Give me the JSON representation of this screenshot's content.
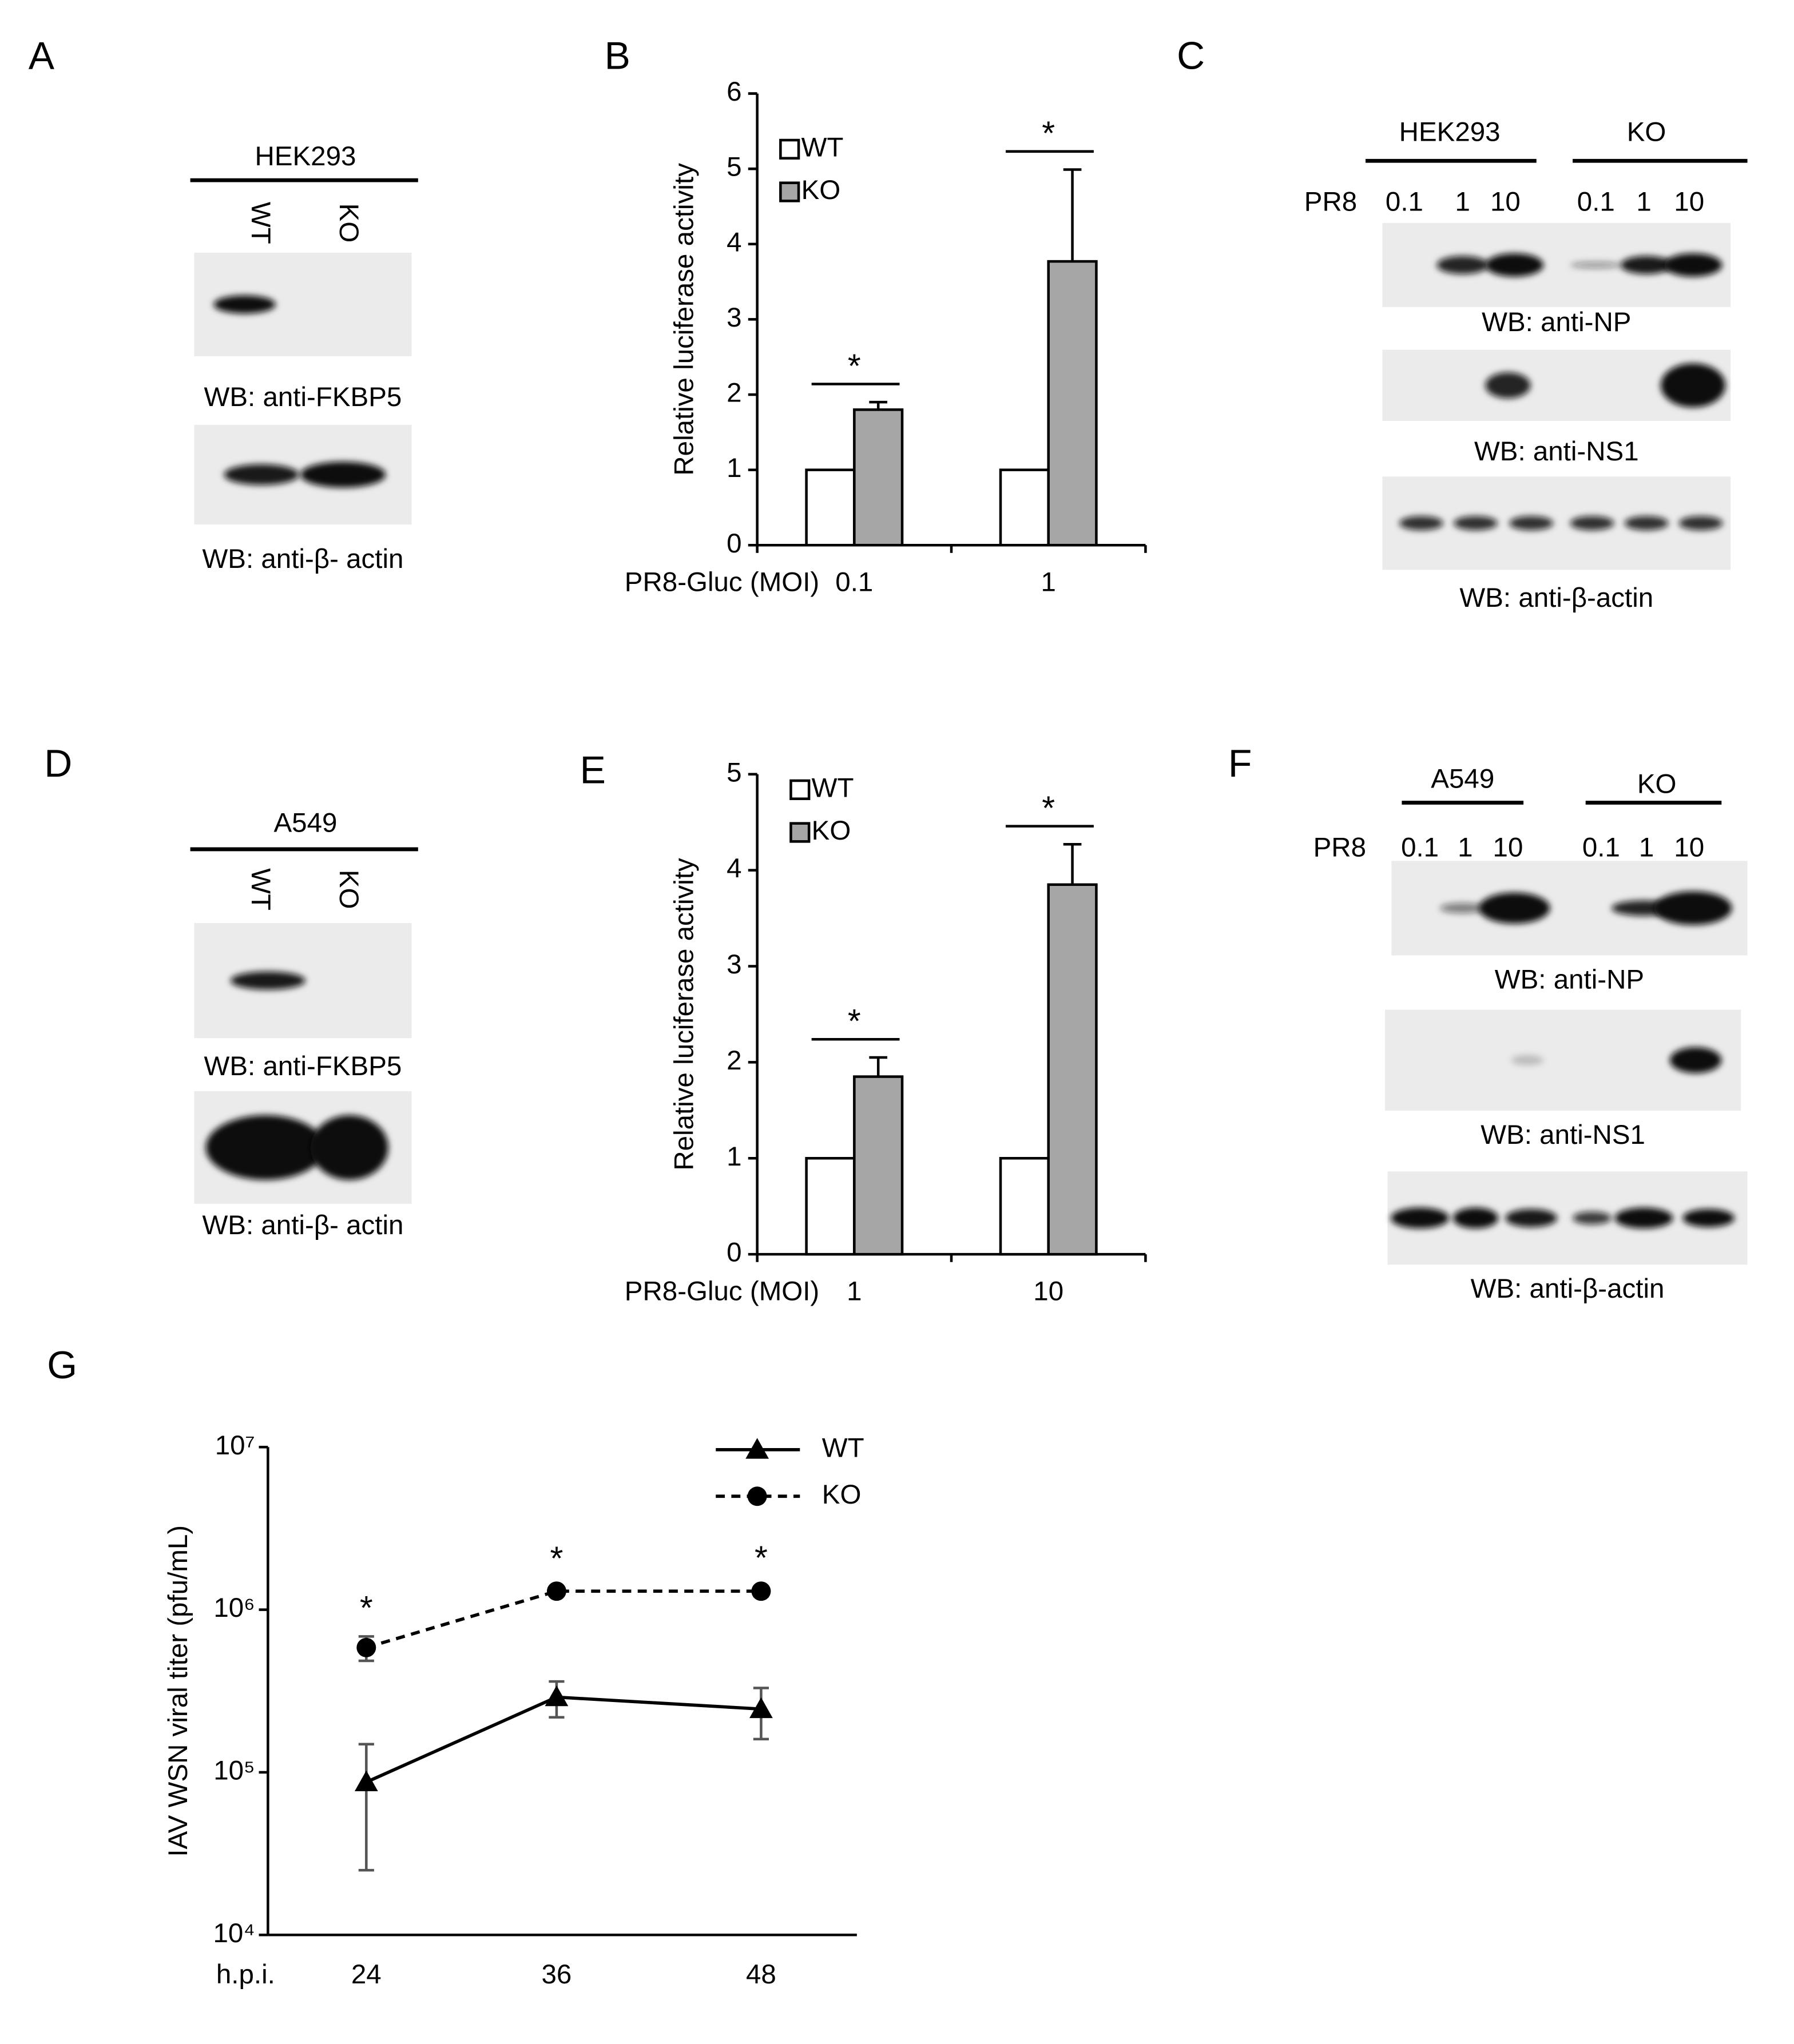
{
  "chart_data": [
    {
      "type": "bar",
      "panel": "B",
      "ylabel": "Relative luciferase activity",
      "xlabel": "PR8-Gluc (MOI)",
      "categories": [
        "0.1",
        "1"
      ],
      "series": [
        {
          "name": "WT",
          "color": "#ffffff",
          "values": [
            1,
            1
          ]
        },
        {
          "name": "KO",
          "color": "#a6a6a6",
          "values": [
            1.8,
            3.77
          ],
          "errors": [
            0.1,
            1.22
          ]
        }
      ],
      "significance": [
        "*",
        "*"
      ],
      "ylim": [
        0,
        6
      ],
      "yticks": [
        0,
        1,
        2,
        3,
        4,
        5,
        6
      ]
    },
    {
      "type": "bar",
      "panel": "E",
      "ylabel": "Relative luciferase activity",
      "xlabel": "PR8-Gluc (MOI)",
      "categories": [
        "1",
        "10"
      ],
      "series": [
        {
          "name": "WT",
          "color": "#ffffff",
          "values": [
            1,
            1
          ]
        },
        {
          "name": "KO",
          "color": "#a6a6a6",
          "values": [
            1.85,
            3.85
          ],
          "errors": [
            0.2,
            0.42
          ]
        }
      ],
      "significance": [
        "*",
        "*"
      ],
      "ylim": [
        0,
        5
      ],
      "yticks": [
        0,
        1,
        2,
        3,
        4,
        5
      ]
    },
    {
      "type": "line",
      "panel": "G",
      "ylabel": "IAV WSN viral titer (pfu/mL)",
      "xlabel": "h.p.i.",
      "categories": [
        "24",
        "36",
        "48"
      ],
      "series": [
        {
          "name": "WT",
          "color": "#000000",
          "marker": "triangle",
          "dashed": false,
          "values": [
            87000,
            290000,
            245000
          ],
          "errors": [
            62000,
            72000,
            85000
          ]
        },
        {
          "name": "KO",
          "color": "#000000",
          "marker": "circle",
          "dashed": true,
          "values": [
            585000,
            1300000,
            1300000
          ],
          "errors": [
            100000,
            80000,
            90000
          ]
        }
      ],
      "significance": [
        "*",
        "*",
        "*"
      ],
      "log_scale": true,
      "ylim": [
        10000,
        10000000
      ],
      "yticks": [
        {
          "value": 10000,
          "label": "10⁴"
        },
        {
          "value": 100000,
          "label": "10⁵"
        },
        {
          "value": 1000000,
          "label": "10⁶"
        },
        {
          "value": 10000000,
          "label": "10⁷"
        }
      ]
    }
  ],
  "blots": [
    {
      "panel": "A",
      "cell_line": "HEK293",
      "lanes": [
        "WT",
        "KO"
      ],
      "probes": [
        "WB: anti-FKBP5",
        "WB: anti-β- actin"
      ]
    },
    {
      "panel": "C",
      "groups": [
        "HEK293",
        "KO"
      ],
      "treatment": "PR8",
      "doses": [
        "0.1",
        "1",
        "10",
        "0.1",
        "1",
        "10"
      ],
      "probes": [
        "WB: anti-NP",
        "WB: anti-NS1",
        "WB: anti-β-actin"
      ]
    },
    {
      "panel": "D",
      "cell_line": "A549",
      "lanes": [
        "WT",
        "KO"
      ],
      "probes": [
        "WB: anti-FKBP5",
        "WB: anti-β- actin"
      ]
    },
    {
      "panel": "F",
      "groups": [
        "A549",
        "KO"
      ],
      "treatment": "PR8",
      "doses": [
        "0.1",
        "1",
        "10",
        "0.1",
        "1",
        "10"
      ],
      "probes": [
        "WB: anti-NP",
        "WB: anti-NS1",
        "WB: anti-β-actin"
      ]
    }
  ]
}
